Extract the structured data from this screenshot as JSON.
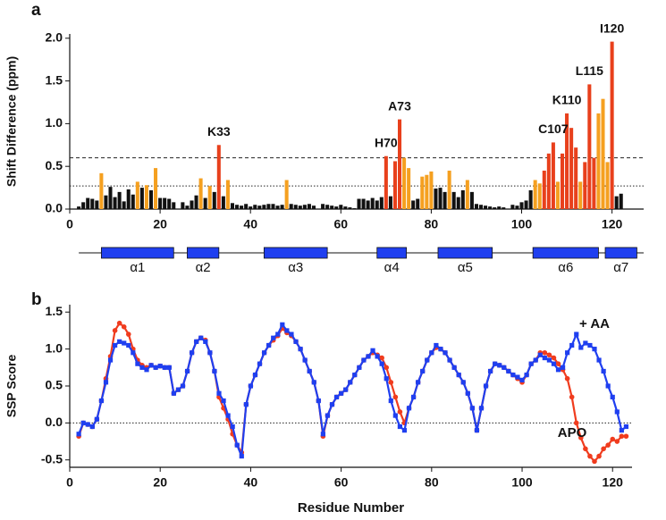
{
  "chart_data": [
    {
      "type": "bar",
      "panel": "a",
      "ylabel": "Shift Difference (ppm)",
      "xlim": [
        0,
        127
      ],
      "xticks": [
        0,
        20,
        40,
        60,
        80,
        100,
        120
      ],
      "ylim": [
        0,
        2.05
      ],
      "yticks": [
        {
          "value": 0,
          "label": "0.0"
        },
        0.5,
        {
          "value": 1,
          "label": "1.0"
        },
        1.5,
        {
          "value": 2,
          "label": "2.0"
        }
      ],
      "hlines": [
        {
          "value": 0.6,
          "style": "dashed"
        },
        {
          "value": 0.27,
          "style": "dotted"
        }
      ],
      "x": [
        2,
        3,
        4,
        5,
        6,
        7,
        8,
        9,
        10,
        11,
        12,
        13,
        14,
        15,
        16,
        17,
        18,
        19,
        20,
        21,
        22,
        23,
        24,
        25,
        26,
        27,
        28,
        29,
        30,
        31,
        32,
        33,
        34,
        35,
        36,
        37,
        38,
        39,
        40,
        41,
        42,
        43,
        44,
        45,
        46,
        47,
        48,
        49,
        50,
        51,
        52,
        53,
        54,
        55,
        56,
        57,
        58,
        59,
        60,
        61,
        62,
        63,
        64,
        65,
        66,
        67,
        68,
        69,
        70,
        71,
        72,
        73,
        74,
        75,
        76,
        77,
        78,
        79,
        80,
        81,
        82,
        83,
        84,
        85,
        86,
        87,
        88,
        89,
        90,
        91,
        92,
        93,
        94,
        95,
        96,
        97,
        98,
        99,
        100,
        101,
        102,
        103,
        104,
        105,
        106,
        107,
        108,
        109,
        110,
        111,
        112,
        113,
        114,
        115,
        116,
        117,
        118,
        119,
        120,
        121,
        122
      ],
      "values": [
        0.03,
        0.08,
        0.13,
        0.12,
        0.1,
        0.42,
        0.16,
        0.26,
        0.14,
        0.2,
        0.09,
        0.23,
        0.17,
        0.32,
        0.25,
        0.28,
        0.22,
        0.48,
        0.13,
        0.13,
        0.12,
        0.08,
        0,
        0.08,
        0.04,
        0.1,
        0.16,
        0.36,
        0.13,
        0.27,
        0.2,
        0.75,
        0.15,
        0.34,
        0.07,
        0.05,
        0.04,
        0.06,
        0.03,
        0.05,
        0.04,
        0.05,
        0.06,
        0.06,
        0.04,
        0.05,
        0.34,
        0.06,
        0.05,
        0.04,
        0.05,
        0.06,
        0.04,
        0,
        0.06,
        0.05,
        0.04,
        0.03,
        0.05,
        0.03,
        0.02,
        0.01,
        0.12,
        0.12,
        0.1,
        0.13,
        0.1,
        0.14,
        0.62,
        0.15,
        0.56,
        1.05,
        0.6,
        0.48,
        0.1,
        0.12,
        0.38,
        0.4,
        0.44,
        0.24,
        0.25,
        0.2,
        0.45,
        0.2,
        0.14,
        0.22,
        0.34,
        0.2,
        0.06,
        0.05,
        0.04,
        0.03,
        0.02,
        0.03,
        0.02,
        0,
        0.05,
        0.04,
        0.08,
        0.1,
        0.22,
        0.34,
        0.3,
        0.45,
        0.65,
        0.78,
        0.32,
        0.65,
        1.12,
        0.95,
        0.72,
        0.32,
        0.55,
        1.46,
        0.6,
        1.12,
        1.29,
        0.55,
        1.96,
        0.15,
        0.18
      ],
      "colors": [
        "#111",
        "#111",
        "#111",
        "#111",
        "#111",
        "#f5a020",
        "#111",
        "#111",
        "#111",
        "#111",
        "#111",
        "#111",
        "#111",
        "#f5a020",
        "#111",
        "#f5a020",
        "#111",
        "#f5a020",
        "#111",
        "#111",
        "#111",
        "#111",
        "#111",
        "#111",
        "#111",
        "#111",
        "#111",
        "#f5a020",
        "#111",
        "#f5a020",
        "#111",
        "#e8401c",
        "#111",
        "#f5a020",
        "#111",
        "#111",
        "#111",
        "#111",
        "#111",
        "#111",
        "#111",
        "#111",
        "#111",
        "#111",
        "#111",
        "#111",
        "#f5a020",
        "#111",
        "#111",
        "#111",
        "#111",
        "#111",
        "#111",
        "#111",
        "#111",
        "#111",
        "#111",
        "#111",
        "#111",
        "#111",
        "#111",
        "#111",
        "#111",
        "#111",
        "#111",
        "#111",
        "#111",
        "#111",
        "#e8401c",
        "#111",
        "#e8401c",
        "#e8401c",
        "#f5a020",
        "#f5a020",
        "#111",
        "#111",
        "#f5a020",
        "#f5a020",
        "#f5a020",
        "#111",
        "#111",
        "#111",
        "#f5a020",
        "#111",
        "#111",
        "#111",
        "#f5a020",
        "#111",
        "#111",
        "#111",
        "#111",
        "#111",
        "#111",
        "#111",
        "#111",
        "#111",
        "#111",
        "#111",
        "#111",
        "#111",
        "#111",
        "#f5a020",
        "#f5a020",
        "#e8401c",
        "#e8401c",
        "#e8401c",
        "#f5a020",
        "#e8401c",
        "#e8401c",
        "#e8401c",
        "#e8401c",
        "#f5a020",
        "#e8401c",
        "#e8401c",
        "#e8401c",
        "#f5a020",
        "#f5a020",
        "#f5a020",
        "#e8401c",
        "#111",
        "#111"
      ],
      "annotations": [
        {
          "text": "K33",
          "x": 33
        },
        {
          "text": "H70",
          "x": 70
        },
        {
          "text": "A73",
          "x": 73
        },
        {
          "text": "C107",
          "x": 107
        },
        {
          "text": "K110",
          "x": 110
        },
        {
          "text": "L115",
          "x": 115
        },
        {
          "text": "I120",
          "x": 120
        }
      ],
      "helices": [
        {
          "label": "α1",
          "start": 7,
          "end": 23
        },
        {
          "label": "α2",
          "start": 26,
          "end": 33
        },
        {
          "label": "α3",
          "start": 43,
          "end": 57
        },
        {
          "label": "α4",
          "start": 68,
          "end": 74.5
        },
        {
          "label": "α5",
          "start": 81.5,
          "end": 93.5
        },
        {
          "label": "α6",
          "start": 102.5,
          "end": 117
        },
        {
          "label": "α7",
          "start": 118.5,
          "end": 125.5
        }
      ],
      "helix_color": "#1f3ff0"
    },
    {
      "type": "line",
      "panel": "b",
      "ylabel": "SSP Score",
      "xlabel": "Residue Number",
      "xlim": [
        0,
        124.3
      ],
      "xticks": [
        0,
        20,
        40,
        60,
        80,
        100,
        120
      ],
      "ylim": [
        -0.6,
        1.6
      ],
      "yticks": [
        -0.5,
        {
          "value": 0,
          "label": "0.0"
        },
        0.5,
        {
          "value": 1,
          "label": "1.0"
        },
        1.5
      ],
      "hlines": [
        {
          "value": 0,
          "style": "dotted"
        }
      ],
      "x": [
        2,
        3,
        4,
        5,
        6,
        7,
        8,
        9,
        10,
        11,
        12,
        13,
        14,
        15,
        16,
        17,
        18,
        19,
        20,
        21,
        22,
        23,
        24,
        25,
        26,
        27,
        28,
        29,
        30,
        31,
        32,
        33,
        34,
        35,
        36,
        37,
        38,
        39,
        40,
        41,
        42,
        43,
        44,
        45,
        46,
        47,
        48,
        49,
        50,
        51,
        52,
        53,
        54,
        55,
        56,
        57,
        58,
        59,
        60,
        61,
        62,
        63,
        64,
        65,
        66,
        67,
        68,
        69,
        70,
        71,
        72,
        73,
        74,
        75,
        76,
        77,
        78,
        79,
        80,
        81,
        82,
        83,
        84,
        85,
        86,
        87,
        88,
        89,
        90,
        91,
        92,
        93,
        94,
        95,
        96,
        97,
        98,
        99,
        100,
        101,
        102,
        103,
        104,
        105,
        106,
        107,
        108,
        109,
        110,
        111,
        112,
        113,
        114,
        115,
        116,
        117,
        118,
        119,
        120,
        121,
        122,
        123
      ],
      "series": [
        {
          "name": "APO",
          "color": "#f03c1e",
          "marker": "circle",
          "values": [
            -0.18,
            0,
            -0.02,
            -0.05,
            0.05,
            0.3,
            0.6,
            0.9,
            1.25,
            1.35,
            1.3,
            1.2,
            1,
            0.85,
            0.78,
            0.75,
            0.78,
            0.75,
            0.77,
            0.75,
            0.75,
            0.4,
            0.45,
            0.5,
            0.7,
            0.95,
            1.1,
            1.15,
            1.12,
            0.95,
            0.7,
            0.35,
            0.2,
            0.05,
            -0.15,
            -0.3,
            -0.4,
            0.25,
            0.5,
            0.65,
            0.8,
            0.95,
            1.05,
            1.12,
            1.18,
            1.28,
            1.22,
            1.18,
            1.1,
            1,
            0.85,
            0.7,
            0.55,
            0.3,
            -0.18,
            0.1,
            0.25,
            0.35,
            0.4,
            0.45,
            0.55,
            0.65,
            0.75,
            0.85,
            0.9,
            0.95,
            0.92,
            0.88,
            0.75,
            0.55,
            0.35,
            0.15,
            0,
            0.2,
            0.35,
            0.55,
            0.7,
            0.85,
            0.95,
            1.02,
            1,
            0.95,
            0.85,
            0.75,
            0.65,
            0.55,
            0.4,
            0.2,
            -0.1,
            0.2,
            0.5,
            0.7,
            0.8,
            0.78,
            0.75,
            0.7,
            0.65,
            0.6,
            0.55,
            0.65,
            0.8,
            0.85,
            0.95,
            0.95,
            0.92,
            0.88,
            0.8,
            0.72,
            0.6,
            0.35,
            0,
            -0.2,
            -0.35,
            -0.45,
            -0.52,
            -0.45,
            -0.35,
            -0.3,
            -0.22,
            -0.25,
            -0.18,
            -0.18
          ]
        },
        {
          "name": "+ AA",
          "color": "#1f3ff0",
          "marker": "square",
          "values": [
            -0.15,
            0,
            -0.02,
            -0.05,
            0.05,
            0.3,
            0.55,
            0.85,
            1.05,
            1.1,
            1.08,
            1.05,
            0.95,
            0.8,
            0.75,
            0.72,
            0.78,
            0.75,
            0.77,
            0.75,
            0.75,
            0.4,
            0.45,
            0.5,
            0.7,
            0.95,
            1.1,
            1.15,
            1.1,
            0.95,
            0.7,
            0.4,
            0.3,
            0.1,
            -0.05,
            -0.3,
            -0.45,
            0.25,
            0.5,
            0.65,
            0.8,
            0.95,
            1.05,
            1.15,
            1.2,
            1.33,
            1.25,
            1.2,
            1.1,
            1,
            0.85,
            0.7,
            0.55,
            0.3,
            -0.15,
            0.1,
            0.25,
            0.35,
            0.4,
            0.45,
            0.55,
            0.65,
            0.75,
            0.85,
            0.9,
            0.98,
            0.9,
            0.8,
            0.6,
            0.3,
            0.1,
            -0.05,
            -0.1,
            0.2,
            0.35,
            0.55,
            0.7,
            0.85,
            0.95,
            1.05,
            1,
            0.95,
            0.85,
            0.75,
            0.65,
            0.55,
            0.4,
            0.2,
            -0.1,
            0.2,
            0.5,
            0.7,
            0.8,
            0.78,
            0.75,
            0.7,
            0.65,
            0.62,
            0.58,
            0.65,
            0.8,
            0.85,
            0.92,
            0.88,
            0.85,
            0.8,
            0.72,
            0.75,
            0.95,
            1.05,
            1.2,
            1.02,
            1.08,
            1.05,
            1,
            0.85,
            0.7,
            0.5,
            0.35,
            0.15,
            -0.1,
            -0.05
          ]
        }
      ]
    }
  ]
}
